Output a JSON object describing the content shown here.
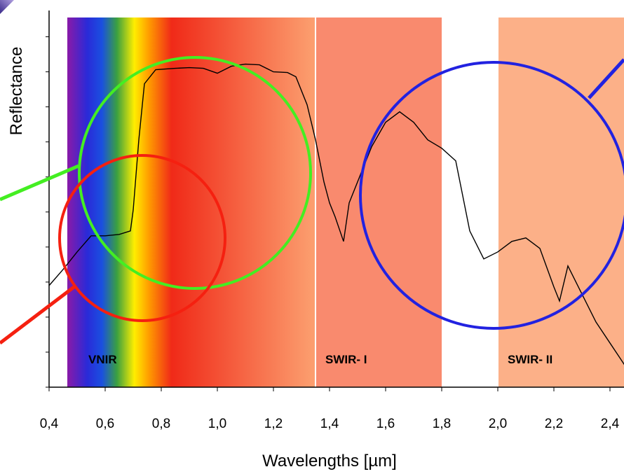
{
  "chart_data": {
    "type": "line",
    "xlabel": "Wavelengths [µm]",
    "ylabel": "Reflectance",
    "x": [
      0.4,
      0.45,
      0.5,
      0.55,
      0.6,
      0.65,
      0.69,
      0.7,
      0.72,
      0.74,
      0.78,
      0.85,
      0.9,
      0.95,
      1.0,
      1.05,
      1.1,
      1.15,
      1.2,
      1.25,
      1.28,
      1.32,
      1.35,
      1.38,
      1.4,
      1.42,
      1.45,
      1.47,
      1.5,
      1.55,
      1.6,
      1.65,
      1.7,
      1.75,
      1.8,
      1.85,
      1.9,
      1.95,
      2.0,
      2.05,
      2.1,
      2.15,
      2.2,
      2.22,
      2.25,
      2.3,
      2.35,
      2.4,
      2.45,
      2.48
    ],
    "series": [
      {
        "color": "#000000",
        "values": [
          0.29,
          0.336,
          0.386,
          0.432,
          0.432,
          0.436,
          0.446,
          0.506,
          0.706,
          0.866,
          0.906,
          0.91,
          0.912,
          0.91,
          0.896,
          0.916,
          0.922,
          0.92,
          0.9,
          0.898,
          0.886,
          0.806,
          0.706,
          0.586,
          0.526,
          0.486,
          0.416,
          0.526,
          0.586,
          0.686,
          0.756,
          0.786,
          0.756,
          0.706,
          0.682,
          0.646,
          0.446,
          0.366,
          0.386,
          0.416,
          0.426,
          0.396,
          0.286,
          0.246,
          0.346,
          0.266,
          0.186,
          0.126,
          0.066,
          0.026
        ]
      }
    ],
    "bands": [
      {
        "name": "VNIR",
        "start": 0.465,
        "end": 1.35,
        "color": "url(#vnir)"
      },
      {
        "name": "SWIR- I",
        "start": 1.35,
        "end": 1.8,
        "color": "#f98a6e"
      },
      {
        "name": "SWIR- II",
        "start": 2.0,
        "end": 2.45,
        "color": "#fcb088"
      }
    ],
    "xlim": [
      0.4,
      2.45
    ],
    "ylim": [
      0,
      1.075
    ],
    "xticks": [
      {
        "value": 0.4,
        "label": "0,4"
      },
      {
        "value": 0.6,
        "label": "0,6"
      },
      {
        "value": 0.8,
        "label": "0,8"
      },
      {
        "value": 1.0,
        "label": "1,0"
      },
      {
        "value": 1.2,
        "label": "1,2"
      },
      {
        "value": 1.4,
        "label": "1,4"
      },
      {
        "value": 1.6,
        "label": "1,6"
      },
      {
        "value": 1.8,
        "label": "1,8"
      },
      {
        "value": 2.0,
        "label": "2,0"
      },
      {
        "value": 2.2,
        "label": "2,2"
      },
      {
        "value": 2.4,
        "label": "2,4"
      }
    ],
    "yticks": [
      0,
      0.1,
      0.2,
      0.3,
      0.4,
      0.5,
      0.6,
      0.7,
      0.8,
      0.9,
      1.0
    ]
  }
}
